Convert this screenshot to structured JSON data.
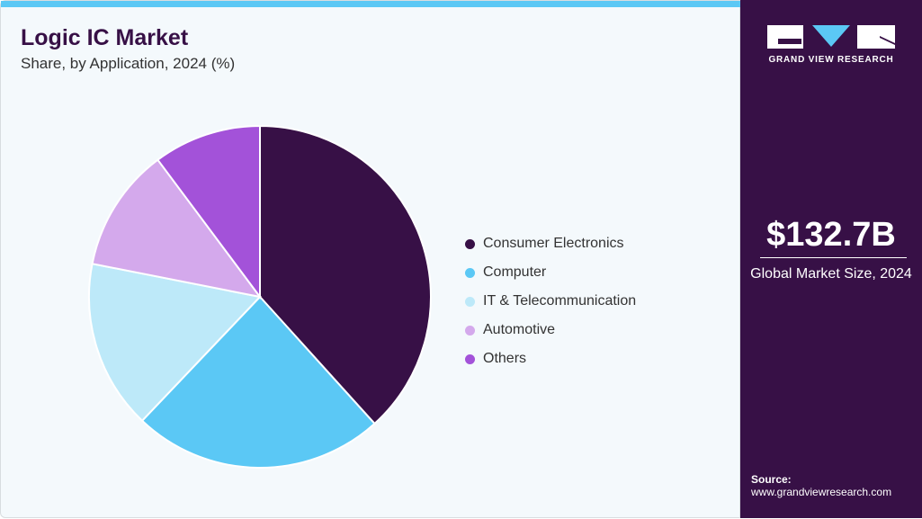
{
  "header": {
    "title": "Logic IC Market",
    "subtitle": "Share, by Application, 2024 (%)"
  },
  "chart_data": {
    "type": "pie",
    "categories": [
      "Consumer Electronics",
      "Computer",
      "IT & Telecommunication",
      "Automotive",
      "Others"
    ],
    "values": [
      38.3,
      23.8,
      16.0,
      11.7,
      10.2
    ],
    "colors": [
      "#371046",
      "#5bc8f5",
      "#bde9f9",
      "#d4a9ec",
      "#a352d9"
    ],
    "start_angle": "12 o'clock, clockwise",
    "legend_position": "right"
  },
  "sidebar": {
    "logo_text": "GRAND VIEW RESEARCH",
    "market_size": "$132.7B",
    "market_size_label": "Global Market Size, 2024",
    "source_label": "Source:",
    "source_url": "www.grandviewresearch.com"
  }
}
